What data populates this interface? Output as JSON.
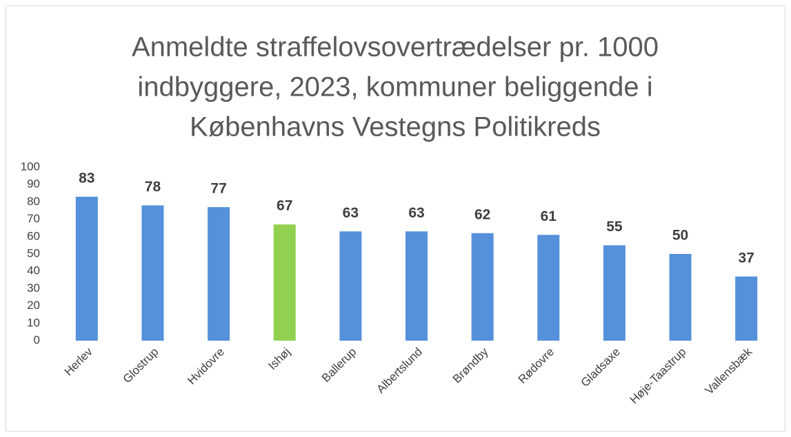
{
  "chart_data": {
    "type": "bar",
    "title": [
      "Anmeldte straffelovsovertrædelser pr. 1000",
      "indbyggere, 2023, kommuner beliggende i",
      "Københavns Vestegns Politikreds"
    ],
    "categories": [
      "Herlev",
      "Glostrup",
      "Hvidovre",
      "Ishøj",
      "Ballerup",
      "Albertslund",
      "Brøndby",
      "Rødovre",
      "Gladsaxe",
      "Høje-Taastrup",
      "Vallensbæk"
    ],
    "values": [
      83,
      78,
      77,
      67,
      63,
      63,
      62,
      61,
      55,
      50,
      37
    ],
    "colors": [
      "#5590da",
      "#5590da",
      "#5590da",
      "#92d050",
      "#5590da",
      "#5590da",
      "#5590da",
      "#5590da",
      "#5590da",
      "#5590da",
      "#5590da"
    ],
    "ylim": [
      0,
      100
    ],
    "yticks": [
      0,
      10,
      20,
      30,
      40,
      50,
      60,
      70,
      80,
      90,
      100
    ],
    "grid": false
  }
}
